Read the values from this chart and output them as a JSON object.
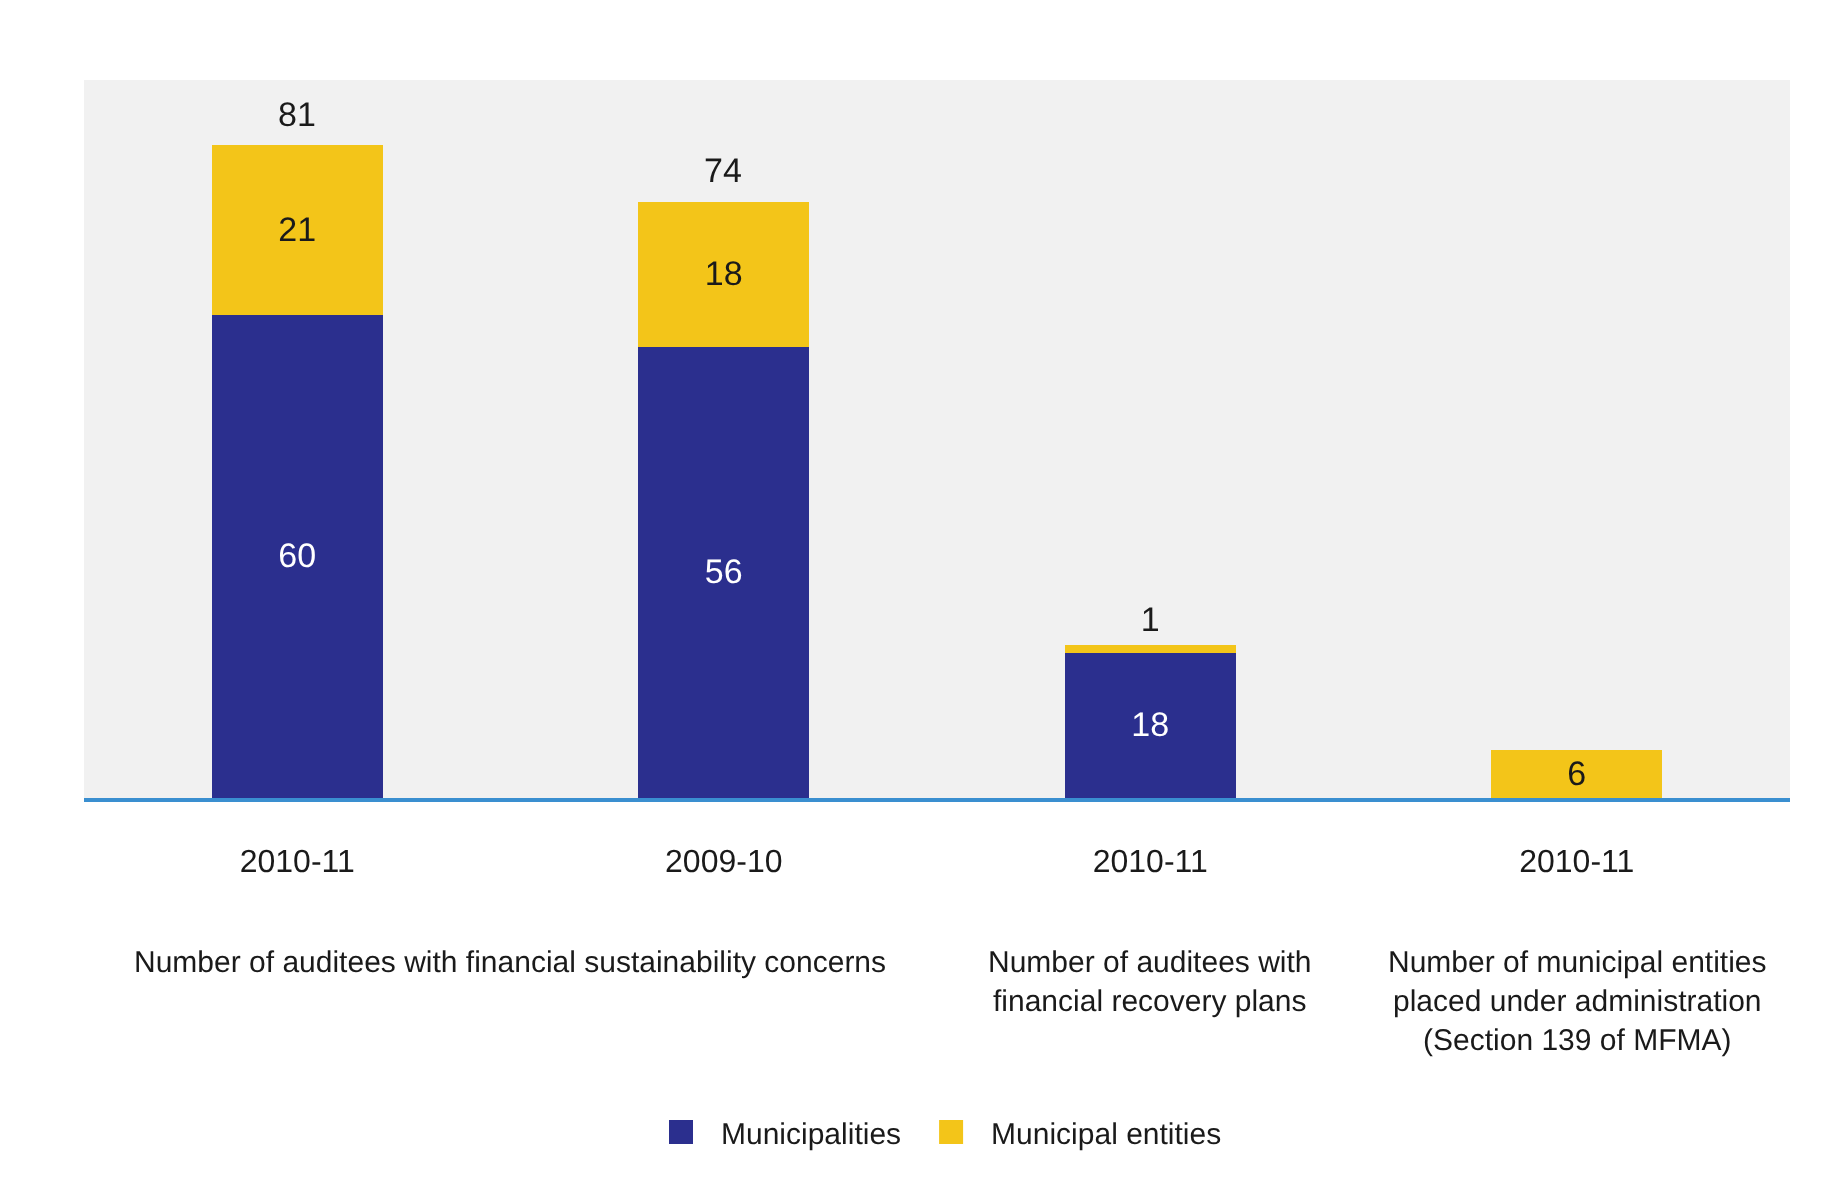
{
  "chart_data": {
    "type": "bar",
    "stacked": true,
    "categories": [
      "2010-11",
      "2009-10",
      "2010-11",
      "2010-11"
    ],
    "series": [
      {
        "name": "Municipalities",
        "color": "#2b2f8e",
        "values": [
          60,
          56,
          18,
          null
        ]
      },
      {
        "name": "Municipal entities",
        "color": "#f3c519",
        "values": [
          21,
          18,
          1,
          6
        ]
      }
    ],
    "totals": [
      "81",
      "74",
      null,
      null
    ],
    "data_labels": true,
    "annotations": [
      "Number of auditees with financial sustainability concerns",
      "Number of auditees with financial recovery plans",
      "Number of municipal entities placed under administration (Section 139 of MFMA)"
    ],
    "legend": "bottom",
    "grid": false
  }
}
